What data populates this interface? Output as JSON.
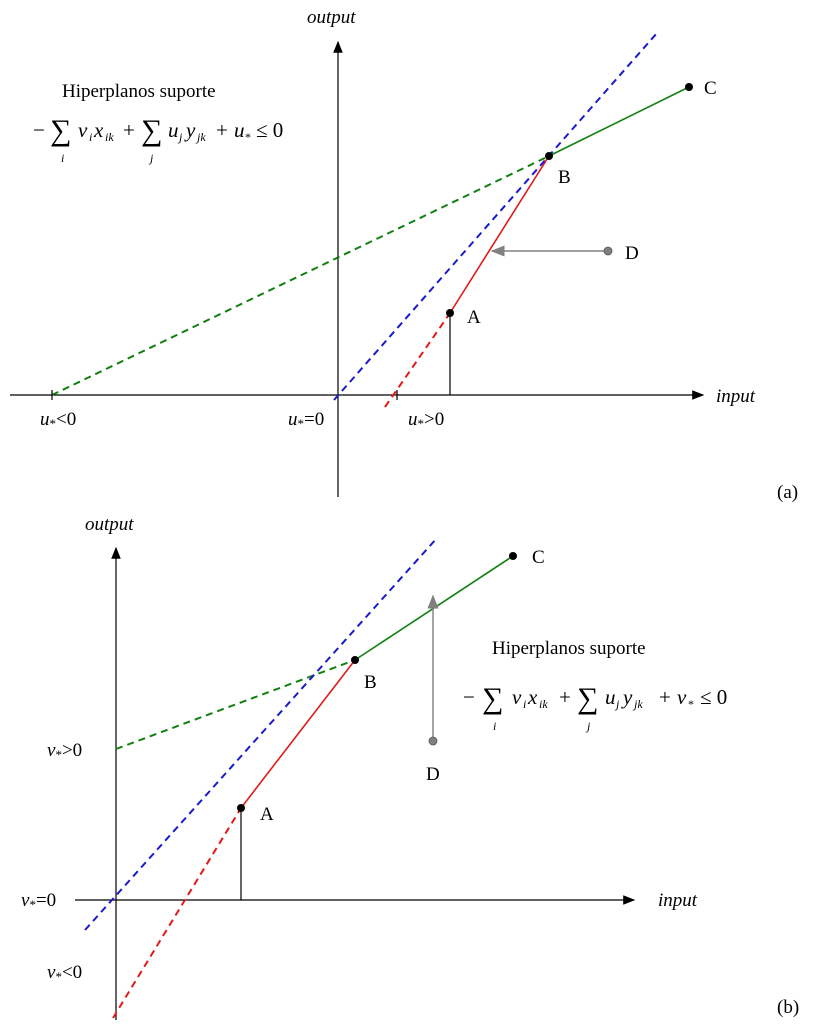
{
  "panel_a": {
    "axis_y_label": "output",
    "axis_x_label": "input",
    "title": "Hiperplanos suporte",
    "formula": {
      "minus": "−",
      "sum": "∑",
      "v": "v",
      "v_sub": "i",
      "x": "x",
      "x_sub": "ik",
      "plus": "+",
      "u": "u",
      "u_sub": "j",
      "y": "y",
      "y_sub": "jk",
      "const": "u",
      "const_sub": "*",
      "rel": "≤ 0",
      "idx_i": "i",
      "idx_j": "j"
    },
    "points": {
      "A": "A",
      "B": "B",
      "C": "C",
      "D": "D"
    },
    "intercepts": {
      "neg": {
        "var": "u",
        "sub": "*",
        "rel": "<0"
      },
      "zero": {
        "var": "u",
        "sub": "*",
        "rel": "=0"
      },
      "pos": {
        "var": "u",
        "sub": "*",
        "rel": ">0"
      }
    },
    "panel_label": "(a)"
  },
  "panel_b": {
    "axis_y_label": "output",
    "axis_x_label": "input",
    "title": "Hiperplanos suporte",
    "formula": {
      "minus": "−",
      "sum": "∑",
      "v": "v",
      "v_sub": "i",
      "x": "x",
      "x_sub": "ik",
      "plus": "+",
      "u": "u",
      "u_sub": "j",
      "y": "y",
      "y_sub": "jk",
      "const": "v",
      "const_sub": "*",
      "rel": "≤ 0",
      "idx_i": "i",
      "idx_j": "j"
    },
    "points": {
      "A": "A",
      "B": "B",
      "C": "C",
      "D": "D"
    },
    "intercepts": {
      "pos": {
        "var": "v",
        "sub": "*",
        "rel": ">0"
      },
      "zero": {
        "var": "v",
        "sub": "*",
        "rel": "=0"
      },
      "neg": {
        "var": "v",
        "sub": "*",
        "rel": "<0"
      }
    },
    "panel_label": "(b)"
  },
  "colors": {
    "green": "#118011",
    "blue": "#1a1acc",
    "red": "#e01a1a",
    "gray": "#808080",
    "black": "#000000"
  }
}
